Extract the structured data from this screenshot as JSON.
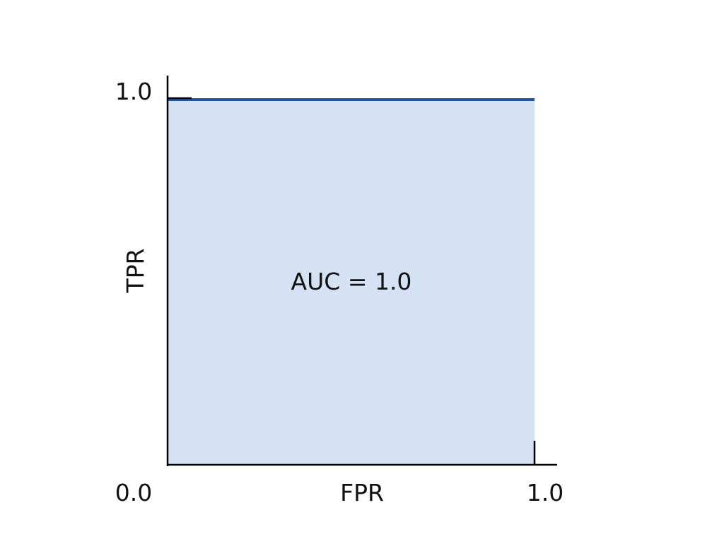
{
  "chart_data": {
    "type": "area",
    "xlabel": "FPR",
    "ylabel": "TPR",
    "xlim": [
      0,
      1
    ],
    "ylim": [
      0,
      1
    ],
    "x_tick_labels": [
      "0.0",
      "1.0"
    ],
    "y_tick_labels": [
      "1.0"
    ],
    "series": [
      {
        "x": [
          0,
          1
        ],
        "y": [
          1,
          1
        ]
      }
    ],
    "annotation": "AUC = 1.0",
    "grid": false,
    "colors": {
      "line": "#2453a0",
      "fill": "#d4e2f4",
      "axis": "#000000"
    }
  }
}
